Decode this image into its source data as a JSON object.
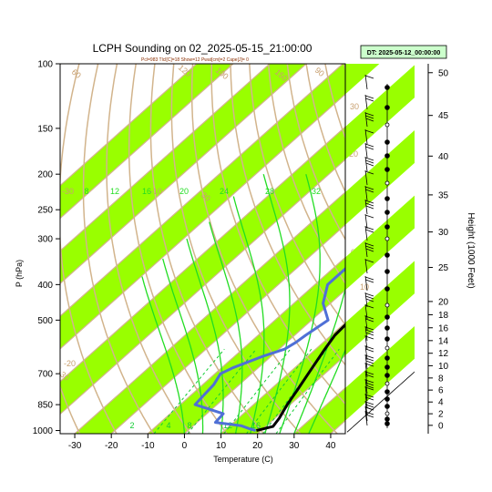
{
  "chart_data": {
    "type": "line",
    "title": "LCPH Sounding on 02_2025-05-15_21:00:00",
    "subtitle": "Pcl=983 Tlcl[C]=18 Show=12 Pwat[cm]=2 Cape[J]= 0",
    "datetime_box": "DT: 2025-05-12_00:00:00",
    "xlabel": "Temperature (C)",
    "ylabel": "P (hPa)",
    "right_ylabel": "Height (1000 Feet)",
    "x_range": [
      -34,
      44
    ],
    "p_range": [
      100,
      1020
    ],
    "x_ticks": [
      -30,
      -20,
      -10,
      0,
      10,
      20,
      30,
      40
    ],
    "p_ticks": [
      100,
      150,
      200,
      250,
      300,
      400,
      500,
      700,
      850,
      1000
    ],
    "height_ticks_kft": [
      0,
      2,
      4,
      6,
      8,
      10,
      12,
      14,
      16,
      18,
      20,
      25,
      30,
      35,
      40,
      45,
      50
    ],
    "series": [
      {
        "name": "",
        "color": "#000000",
        "points": [
          {
            "p": 1000,
            "t": 18.7
          },
          {
            "p": 990,
            "t": 20.0
          },
          {
            "p": 975,
            "t": 22.0
          },
          {
            "p": 925,
            "t": 21.2
          },
          {
            "p": 850,
            "t": 19.2
          },
          {
            "p": 775,
            "t": 17.5
          },
          {
            "p": 700,
            "t": 15.5
          },
          {
            "p": 600,
            "t": 12.5
          },
          {
            "p": 550,
            "t": 11.0
          },
          {
            "p": 500,
            "t": 10.5
          },
          {
            "p": 450,
            "t": 10.8
          },
          {
            "p": 425,
            "t": 10.5
          },
          {
            "p": 400,
            "t": 8.0
          },
          {
            "p": 350,
            "t": 2.5
          },
          {
            "p": 300,
            "t": -3.5
          },
          {
            "p": 250,
            "t": -9.5
          },
          {
            "p": 200,
            "t": -14.5
          },
          {
            "p": 175,
            "t": -16.5
          },
          {
            "p": 150,
            "t": -17.0
          },
          {
            "p": 135,
            "t": -15.5
          },
          {
            "p": 120,
            "t": -12.0
          },
          {
            "p": 110,
            "t": -9.0
          },
          {
            "p": 100,
            "t": -5.5
          }
        ]
      },
      {
        "name": "",
        "color": "#4f70d6",
        "points": [
          {
            "p": 1000,
            "t": 18.5
          },
          {
            "p": 990,
            "t": 16.5
          },
          {
            "p": 970,
            "t": 13.0
          },
          {
            "p": 950,
            "t": 5.0
          },
          {
            "p": 900,
            "t": 4.5
          },
          {
            "p": 850,
            "t": -6.0
          },
          {
            "p": 800,
            "t": -6.5
          },
          {
            "p": 750,
            "t": -7.0
          },
          {
            "p": 700,
            "t": -8.5
          },
          {
            "p": 675,
            "t": -7.0
          },
          {
            "p": 625,
            "t": -2.0
          },
          {
            "p": 600,
            "t": 1.5
          },
          {
            "p": 575,
            "t": 2.5
          },
          {
            "p": 550,
            "t": 3.0
          },
          {
            "p": 500,
            "t": 4.5
          },
          {
            "p": 450,
            "t": -2.0
          },
          {
            "p": 400,
            "t": -6.5
          },
          {
            "p": 350,
            "t": -6.5
          },
          {
            "p": 325,
            "t": -6.0
          },
          {
            "p": 300,
            "t": -4.5
          },
          {
            "p": 250,
            "t": -9.0
          },
          {
            "p": 200,
            "t": -14.5
          },
          {
            "p": 175,
            "t": -15.0
          },
          {
            "p": 150,
            "t": -14.5
          },
          {
            "p": 125,
            "t": -13.0
          },
          {
            "p": 110,
            "t": -10.0
          },
          {
            "p": 100,
            "t": -6.5
          }
        ]
      }
    ],
    "isotherm_labels": [
      -30,
      -20,
      -10,
      0,
      10,
      20,
      30
    ],
    "dry_adiabat_labels": [
      -30,
      30,
      60,
      90,
      100,
      120,
      150
    ],
    "moist_adiabat_labels": [
      8,
      12,
      16,
      20,
      24,
      28,
      32
    ],
    "mixing_ratio_labels": [
      2,
      4,
      8,
      12,
      16
    ],
    "colors": {
      "isotherm_band": "#99ff00",
      "isotherm_line": "#d2b48c",
      "moist_adiabat": "#22dd22",
      "mixing_ratio": "#11cc33"
    },
    "legend": "none",
    "grid": true
  }
}
